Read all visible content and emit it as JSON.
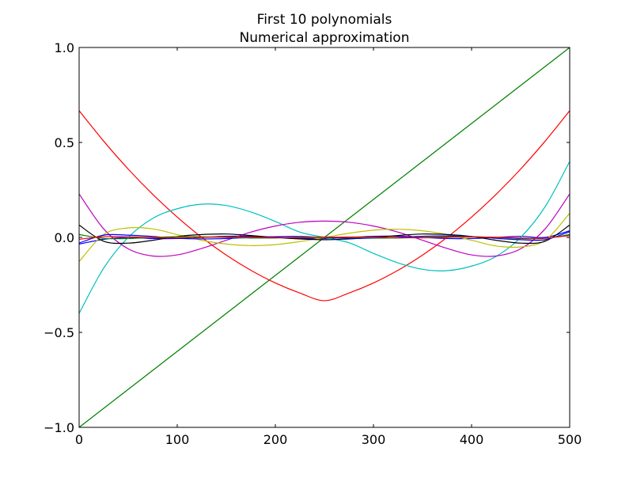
{
  "chart_data": {
    "type": "line",
    "title": [
      "First 10 polynomials",
      "Numerical approximation"
    ],
    "xlabel": "",
    "ylabel": "",
    "xlim": [
      0,
      500
    ],
    "ylim": [
      -1.0,
      1.0
    ],
    "xticks": [
      0,
      100,
      200,
      300,
      400,
      500
    ],
    "xtick_labels": [
      "0",
      "100",
      "200",
      "300",
      "400",
      "500"
    ],
    "yticks": [
      -1.0,
      -0.5,
      0.0,
      0.5,
      1.0
    ],
    "ytick_labels": [
      "−1.0",
      "−0.5",
      "0.0",
      "0.5",
      "1.0"
    ],
    "grid": false,
    "legend": false,
    "x": [
      0,
      25,
      50,
      75,
      100,
      125,
      150,
      175,
      200,
      225,
      250,
      275,
      300,
      325,
      350,
      375,
      400,
      425,
      450,
      475,
      500
    ],
    "series": [
      {
        "color": "#0000ff",
        "values": [
          -0.035,
          -0.01,
          0.0,
          -0.006,
          -0.006,
          0.0,
          0.006,
          0.006,
          0.0,
          -0.006,
          -0.006,
          0.0,
          0.006,
          0.006,
          0.0,
          -0.006,
          -0.006,
          0.0,
          0.006,
          0.0,
          0.035
        ]
      },
      {
        "color": "#008000",
        "values": [
          -1.0,
          -0.9,
          -0.8,
          -0.7,
          -0.6,
          -0.5,
          -0.4,
          -0.3,
          -0.2,
          -0.1,
          0.0,
          0.1,
          0.2,
          0.3,
          0.4,
          0.5,
          0.6,
          0.7,
          0.8,
          0.9,
          1.0
        ]
      },
      {
        "color": "#ff0000",
        "values": [
          0.667,
          0.507,
          0.36,
          0.227,
          0.107,
          0.0,
          -0.093,
          -0.173,
          -0.24,
          -0.293,
          -0.333,
          -0.293,
          -0.24,
          -0.173,
          -0.093,
          0.0,
          0.107,
          0.227,
          0.36,
          0.507,
          0.667
        ]
      },
      {
        "color": "#00bfbf",
        "values": [
          -0.4,
          -0.162,
          0.0,
          0.1,
          0.151,
          0.175,
          0.168,
          0.134,
          0.084,
          0.028,
          0.0,
          -0.028,
          -0.084,
          -0.134,
          -0.168,
          -0.175,
          -0.151,
          -0.1,
          0.0,
          0.162,
          0.4
        ]
      },
      {
        "color": "#bf00bf",
        "values": [
          0.229,
          0.045,
          -0.06,
          -0.098,
          -0.092,
          -0.058,
          -0.015,
          0.028,
          0.06,
          0.08,
          0.086,
          0.08,
          0.06,
          0.028,
          -0.015,
          -0.058,
          -0.092,
          -0.098,
          -0.06,
          0.045,
          0.229
        ]
      },
      {
        "color": "#bfbf00",
        "values": [
          -0.127,
          0.015,
          0.05,
          0.045,
          0.015,
          -0.015,
          -0.035,
          -0.043,
          -0.038,
          -0.022,
          0.0,
          0.022,
          0.038,
          0.043,
          0.035,
          0.015,
          -0.015,
          -0.045,
          -0.05,
          -0.015,
          0.127
        ]
      },
      {
        "color": "#000000",
        "values": [
          0.065,
          -0.02,
          -0.03,
          -0.015,
          0.005,
          0.015,
          0.018,
          0.01,
          0.0,
          -0.008,
          -0.012,
          -0.008,
          0.0,
          0.01,
          0.018,
          0.015,
          0.005,
          -0.015,
          -0.03,
          -0.02,
          0.065
        ]
      },
      {
        "color": "#0000ff",
        "values": [
          -0.03,
          0.012,
          0.012,
          0.005,
          -0.005,
          -0.008,
          -0.006,
          0.0,
          0.004,
          0.005,
          0.0,
          -0.005,
          -0.004,
          0.0,
          0.006,
          0.008,
          0.005,
          -0.005,
          -0.012,
          -0.012,
          0.03
        ]
      },
      {
        "color": "#008000",
        "values": [
          0.015,
          -0.005,
          -0.006,
          0.0,
          0.004,
          0.003,
          0.0,
          -0.003,
          -0.003,
          0.0,
          0.002,
          0.0,
          -0.003,
          -0.003,
          0.0,
          0.003,
          0.004,
          0.0,
          -0.006,
          -0.005,
          0.015
        ]
      },
      {
        "color": "#ff0000",
        "values": [
          -0.01,
          0.004,
          0.003,
          -0.001,
          -0.002,
          0.0,
          0.002,
          0.001,
          -0.001,
          -0.002,
          0.0,
          0.002,
          0.001,
          -0.001,
          -0.002,
          0.0,
          0.002,
          0.001,
          -0.003,
          -0.004,
          0.01
        ]
      }
    ]
  }
}
